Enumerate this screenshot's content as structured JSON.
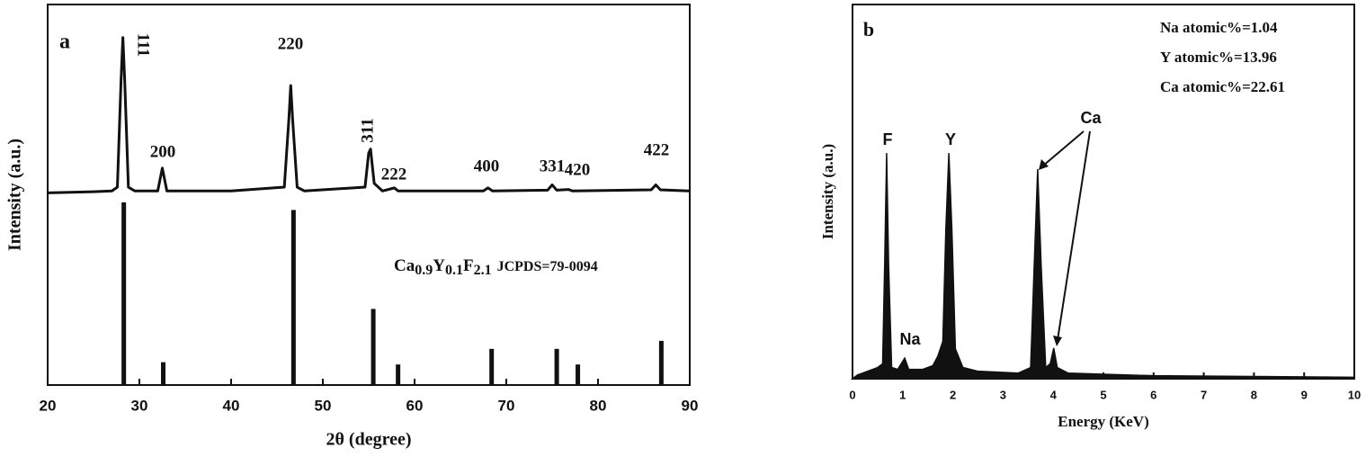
{
  "chart_data": [
    {
      "type": "line",
      "panel": "a",
      "xlabel": "2θ (degree)",
      "ylabel": "Intensity (a.u.)",
      "xlim": [
        20,
        90
      ],
      "xticks": [
        20,
        30,
        40,
        50,
        60,
        70,
        80,
        90
      ],
      "ylim": [
        0,
        100
      ],
      "peak_labels": [
        "111",
        "200",
        "220",
        "311",
        "222",
        "400",
        "331",
        "420",
        "422"
      ],
      "formula": [
        {
          "text": "Ca"
        },
        {
          "text": "0.9",
          "sub": true
        },
        {
          "text": "Y"
        },
        {
          "text": "0.1",
          "sub": true
        },
        {
          "text": "F"
        },
        {
          "text": "2.1",
          "sub": true
        }
      ],
      "note": "JCPDS=79-0094",
      "series": [
        {
          "type": "line",
          "color": "#111111",
          "x": [
            20,
            25,
            27,
            27.6,
            28.0,
            28.2,
            28.4,
            28.8,
            29.5,
            32,
            32.5,
            33,
            40,
            45.8,
            46.3,
            46.5,
            46.7,
            47.2,
            48,
            54.6,
            55.0,
            55.2,
            55.6,
            56.5,
            57.8,
            58.2,
            67.5,
            68,
            68.5,
            74.5,
            75,
            75.5,
            76.8,
            77.2,
            85.8,
            86.3,
            86.8,
            90
          ],
          "values": [
            50.5,
            50.8,
            51,
            52,
            80,
            91.3,
            80,
            52,
            51,
            51,
            57,
            51,
            51,
            52,
            70,
            78.7,
            70,
            52,
            51,
            52,
            61,
            62,
            53,
            51,
            51.8,
            51,
            51,
            51.8,
            51,
            51.2,
            52.6,
            51.2,
            51.4,
            51,
            51.3,
            52.6,
            51.3,
            51
          ]
        },
        {
          "type": "bar",
          "color": "#111111",
          "x": [
            28.3,
            32.6,
            46.8,
            55.5,
            58.2,
            68.4,
            75.5,
            77.8,
            86.9
          ],
          "values": [
            48,
            6,
            46,
            20,
            5.4,
            9.5,
            9.5,
            5.4,
            11.6
          ]
        }
      ]
    },
    {
      "type": "area",
      "panel": "b",
      "xlabel": "Energy (KeV)",
      "ylabel": "Intensity (a.u.)",
      "xlim": [
        0,
        10
      ],
      "xticks": [
        0,
        1,
        2,
        3,
        4,
        5,
        6,
        7,
        8,
        9,
        10
      ],
      "ylim": [
        0,
        100
      ],
      "peak_labels": [
        "F",
        "Y",
        "Na",
        "Ca"
      ],
      "notes": [
        "Na atomic%=1.04",
        "Y atomic%=13.96",
        "Ca atomic%=22.61"
      ],
      "series": [
        {
          "type": "area",
          "color": "#111111",
          "x": [
            0,
            0.1,
            0.3,
            0.5,
            0.6,
            0.64,
            0.68,
            0.72,
            0.78,
            0.9,
            1.04,
            1.12,
            1.4,
            1.6,
            1.7,
            1.8,
            1.86,
            1.92,
            1.98,
            2.05,
            2.2,
            2.5,
            3.3,
            3.55,
            3.62,
            3.69,
            3.76,
            3.85,
            3.94,
            4.01,
            4.08,
            4.3,
            5,
            6,
            8,
            10
          ],
          "values": [
            0,
            1,
            2,
            3,
            4,
            30,
            60.3,
            30,
            3,
            2.5,
            5.5,
            2.5,
            2.5,
            3.5,
            6,
            10,
            40,
            60.3,
            40,
            8,
            3,
            2,
            1.5,
            3,
            30,
            56,
            30,
            3,
            4,
            8.2,
            3,
            1.5,
            1.2,
            0.8,
            0.6,
            0.4
          ]
        }
      ]
    }
  ]
}
